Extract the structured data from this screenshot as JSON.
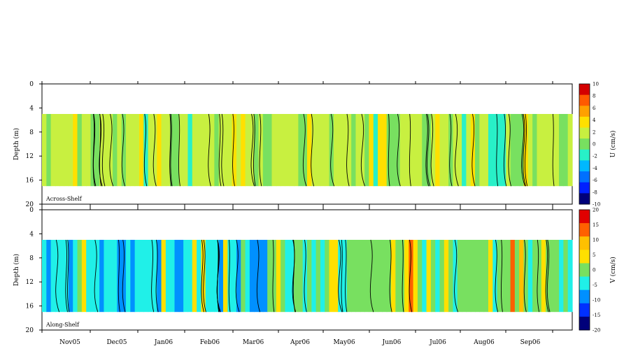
{
  "chart_data": [
    {
      "type": "heatmap",
      "panel_label": "Across-Shelf",
      "ylabel": "Depth (m)",
      "colorbar_label": "U (cm/s)",
      "y_ticks": [
        0,
        4,
        8,
        12,
        16,
        20
      ],
      "ylim": [
        0,
        20
      ],
      "y_inverted": true,
      "data_depth_range": [
        5,
        17
      ],
      "colorbar_ticks": [
        10,
        8,
        6,
        4,
        2,
        0,
        -2,
        -4,
        -6,
        -8,
        -10
      ],
      "colorbar_colors": [
        "#d40000",
        "#ff5a00",
        "#ffa000",
        "#ffe000",
        "#c8f040",
        "#78e060",
        "#28f0c8",
        "#00b8ff",
        "#0070ff",
        "#0020ff",
        "#00007a"
      ],
      "dominant_range": [
        -2,
        4
      ],
      "notes": "Field mostly 0 to 2 cm/s with patches of 2 to 4 cm/s; isolated weak negatives near Aug06"
    },
    {
      "type": "heatmap",
      "panel_label": "Along-Shelf",
      "ylabel": "Depth (m)",
      "colorbar_label": "V (cm/s)",
      "y_ticks": [
        0,
        4,
        8,
        12,
        16,
        20
      ],
      "ylim": [
        0,
        20
      ],
      "y_inverted": true,
      "data_depth_range": [
        5,
        17
      ],
      "colorbar_ticks": [
        20,
        15,
        10,
        5,
        0,
        -5,
        -10,
        -15,
        -20
      ],
      "colorbar_colors": [
        "#e00000",
        "#ff6000",
        "#ffc000",
        "#ffe000",
        "#78e060",
        "#20f0e8",
        "#0090ff",
        "#0030ff",
        "#00007a"
      ],
      "dominant_range": [
        -10,
        10
      ],
      "notes": "Negative (-5 to -10) dominates Nov05 to Mar06; mostly 0 to 5 afterwards with positive bursts near Jun06 and Aug06"
    }
  ],
  "x_axis": {
    "months": [
      "Nov05",
      "Dec05",
      "Jan06",
      "Feb06",
      "Mar06",
      "Apr06",
      "May06",
      "Jun06",
      "Jul06",
      "Aug06",
      "Sep06"
    ]
  },
  "colors": {
    "missing": "#ffffff",
    "contour": "#000000"
  }
}
